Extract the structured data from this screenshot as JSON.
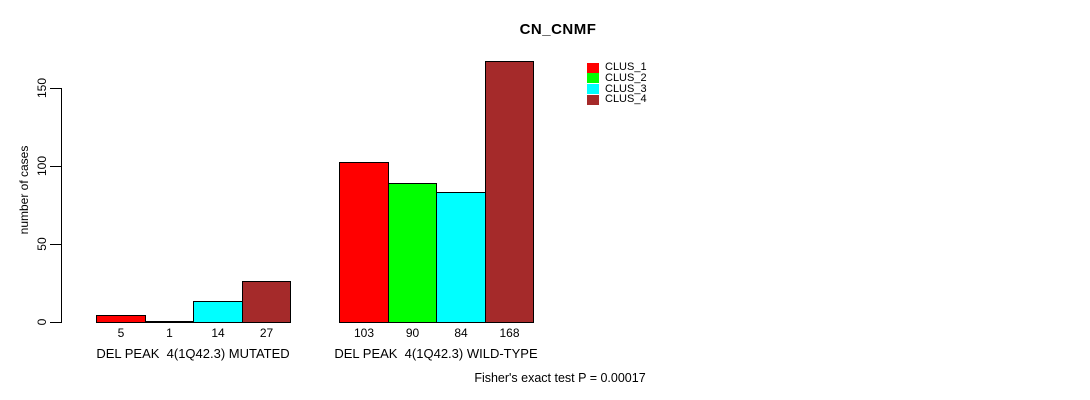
{
  "title": "CN_CNMF",
  "subtitle": "Fisher's exact test P = 0.00017",
  "y_axis": {
    "label": "number of cases",
    "ticks": [
      0,
      50,
      100,
      150
    ]
  },
  "legend": {
    "items": [
      {
        "label": "CLUS_1",
        "color": "#ff0000"
      },
      {
        "label": "CLUS_2",
        "color": "#00ff00"
      },
      {
        "label": "CLUS_3",
        "color": "#00ffff"
      },
      {
        "label": "CLUS_4",
        "color": "#a52a2a"
      }
    ]
  },
  "chart_data": {
    "type": "bar",
    "title": "CN_CNMF",
    "ylabel": "number of cases",
    "xlabel": "",
    "categories": [
      "DEL PEAK  4(1Q42.3) MUTATED",
      "DEL PEAK  4(1Q42.3) WILD-TYPE"
    ],
    "series": [
      {
        "name": "CLUS_1",
        "color": "#ff0000",
        "values": [
          5,
          103
        ]
      },
      {
        "name": "CLUS_2",
        "color": "#00ff00",
        "values": [
          1,
          90
        ]
      },
      {
        "name": "CLUS_3",
        "color": "#00ffff",
        "values": [
          14,
          84
        ]
      },
      {
        "name": "CLUS_4",
        "color": "#a52a2a",
        "values": [
          27,
          168
        ]
      }
    ],
    "bar_value_labels": [
      [
        "5",
        "1",
        "14",
        "27"
      ],
      [
        "103",
        "90",
        "84",
        "168"
      ]
    ],
    "yticks": [
      0,
      50,
      100,
      150
    ],
    "ylim": [
      0,
      175
    ],
    "grid": false,
    "legend_position": "top-right",
    "annotation": "Fisher's exact test P = 0.00017"
  }
}
